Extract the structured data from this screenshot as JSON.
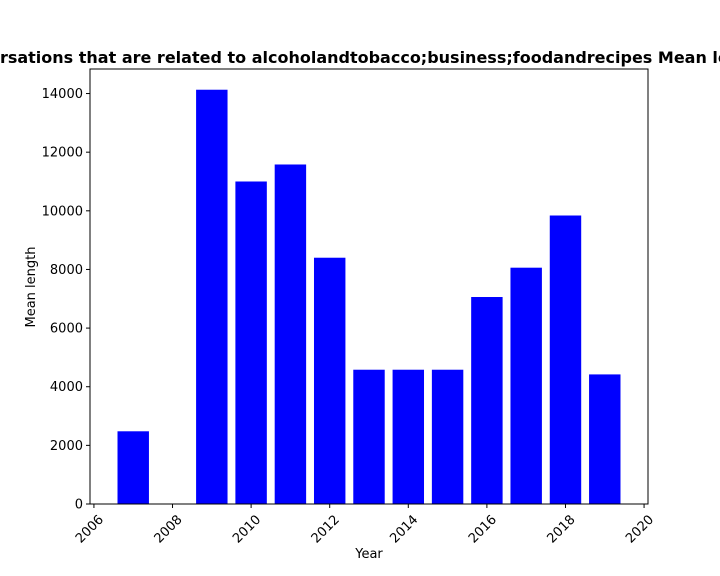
{
  "chart_data": {
    "type": "bar",
    "title": "Mean length of private conversations that are related to alcoholandtobacco;business;foodandrecipes Mean length in private conversations",
    "xlabel": "Year",
    "ylabel": "Mean length",
    "x": [
      2007,
      2008,
      2009,
      2010,
      2011,
      2012,
      2013,
      2014,
      2015,
      2016,
      2017,
      2018,
      2019
    ],
    "values": [
      2480,
      0,
      14130,
      11000,
      11580,
      8400,
      4580,
      4580,
      4580,
      7060,
      8060,
      9840,
      4420
    ],
    "xlim": [
      2005.9,
      2020.1
    ],
    "ylim": [
      0,
      14837
    ],
    "xticks": [
      2006,
      2008,
      2010,
      2012,
      2014,
      2016,
      2018,
      2020
    ],
    "yticks": [
      0,
      2000,
      4000,
      6000,
      8000,
      10000,
      12000,
      14000
    ],
    "bar_color": "#0000ff",
    "grid": false,
    "legend": "none"
  }
}
